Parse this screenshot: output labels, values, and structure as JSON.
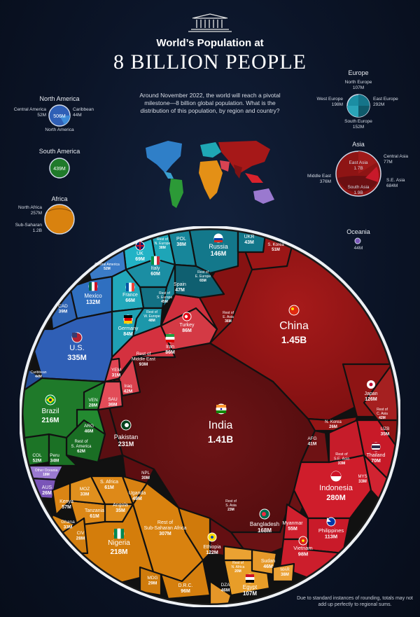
{
  "header": {
    "title_line1": "World’s Population at",
    "title_line2": "8 BILLION PEOPLE",
    "intro": "Around November 2022, the world will reach a pivotal milestone—8 billion global population. What is the distribution of this population, by region and country?"
  },
  "footnote": "Due to standard instances of rounding, totals may not add up perfectly to regional sums.",
  "colors": {
    "north_america": "#2f5fb6",
    "south_america": "#1f7a2a",
    "africa": "#d9820f",
    "europe": "#1b8ea3",
    "asia_east": "#8e1414",
    "asia_south": "#6b0f12",
    "asia_middle_east": "#d4313f",
    "asia_se": "#c8192a",
    "oceania": "#7a55b8"
  },
  "legend": {
    "north_america": {
      "name": "North America",
      "total": "506M",
      "parts": [
        {
          "label": "Central America",
          "value": "52M"
        },
        {
          "label": "Caribbean",
          "value": "44M"
        },
        {
          "label": "North America",
          "value": ""
        }
      ]
    },
    "south_america": {
      "name": "South America",
      "total": "439M"
    },
    "africa": {
      "name": "Africa",
      "parts": [
        {
          "label": "North Africa",
          "value": "257M"
        },
        {
          "label": "Sub-Saharan",
          "value": "1.2B"
        }
      ]
    },
    "europe": {
      "name": "Europe",
      "parts": [
        {
          "label": "North Europe",
          "value": "107M"
        },
        {
          "label": "West Europe",
          "value": "198M"
        },
        {
          "label": "East Europe",
          "value": "292M"
        },
        {
          "label": "South Europe",
          "value": "152M"
        }
      ]
    },
    "asia": {
      "name": "Asia",
      "parts": [
        {
          "label": "Central Asia",
          "value": "77M"
        },
        {
          "label": "East Asia",
          "value": "1.7B"
        },
        {
          "label": "Middle East",
          "value": "376M"
        },
        {
          "label": "South Asia",
          "value": "1.9B"
        },
        {
          "label": "S.E. Asia",
          "value": "684M"
        }
      ]
    },
    "oceania": {
      "name": "Oceania",
      "total": "44M"
    }
  },
  "chart_data": {
    "type": "voronoi-treemap",
    "title": "World’s Population at 8 BILLION PEOPLE",
    "unit": "people",
    "cells": [
      {
        "name": "China",
        "value": "1.45B",
        "region": "asia_east"
      },
      {
        "name": "India",
        "value": "1.41B",
        "region": "asia_south"
      },
      {
        "name": "U.S.",
        "value": "335M",
        "region": "north_america"
      },
      {
        "name": "Indonesia",
        "value": "280M",
        "region": "asia_se"
      },
      {
        "name": "Pakistan",
        "value": "231M",
        "region": "asia_south"
      },
      {
        "name": "Nigeria",
        "value": "218M",
        "region": "africa"
      },
      {
        "name": "Brazil",
        "value": "216M",
        "region": "south_america"
      },
      {
        "name": "Bangladesh",
        "value": "168M",
        "region": "asia_south"
      },
      {
        "name": "Russia",
        "value": "146M",
        "region": "europe"
      },
      {
        "name": "Mexico",
        "value": "132M",
        "region": "north_america"
      },
      {
        "name": "Japan",
        "value": "126M",
        "region": "asia_east"
      },
      {
        "name": "Ethiopia",
        "value": "122M",
        "region": "africa"
      },
      {
        "name": "Philippines",
        "value": "113M",
        "region": "asia_se"
      },
      {
        "name": "Egypt",
        "value": "107M",
        "region": "africa"
      },
      {
        "name": "Vietnam",
        "value": "98M",
        "region": "asia_se"
      },
      {
        "name": "D.R.C.",
        "value": "96M",
        "region": "africa"
      },
      {
        "name": "Iran",
        "value": "86M",
        "region": "asia_middle_east"
      },
      {
        "name": "Turkey",
        "value": "86M",
        "region": "asia_middle_east"
      },
      {
        "name": "Germany",
        "value": "84M",
        "region": "europe"
      },
      {
        "name": "Thailand",
        "value": "70M",
        "region": "asia_se"
      },
      {
        "name": "UK",
        "value": "69M",
        "region": "europe"
      },
      {
        "name": "France",
        "value": "66M",
        "region": "europe"
      },
      {
        "name": "Italy",
        "value": "60M",
        "region": "europe"
      },
      {
        "name": "S. Africa",
        "value": "61M",
        "region": "africa"
      },
      {
        "name": "Tanzania",
        "value": "61M",
        "region": "africa"
      },
      {
        "name": "Myanmar",
        "value": "55M",
        "region": "asia_se"
      },
      {
        "name": "Kenya",
        "value": "57M",
        "region": "africa"
      },
      {
        "name": "Spain",
        "value": "47M",
        "region": "europe"
      },
      {
        "name": "Uganda",
        "value": "49M",
        "region": "africa"
      },
      {
        "name": "S. Korea",
        "value": "51M",
        "region": "asia_east"
      },
      {
        "name": "Sudan",
        "value": "46M",
        "region": "africa"
      },
      {
        "name": "UKR",
        "value": "43M",
        "region": "europe"
      },
      {
        "name": "AFG",
        "value": "41M",
        "region": "asia_south"
      },
      {
        "name": "Iraq",
        "value": "42M",
        "region": "asia_middle_east"
      },
      {
        "name": "ARG",
        "value": "46M",
        "region": "south_america"
      },
      {
        "name": "CAD",
        "value": "39M",
        "region": "north_america"
      },
      {
        "name": "POL",
        "value": "38M",
        "region": "europe"
      },
      {
        "name": "Angola",
        "value": "35M",
        "region": "africa"
      },
      {
        "name": "MOZ",
        "value": "33M",
        "region": "africa"
      },
      {
        "name": "Ghana",
        "value": "33M",
        "region": "africa"
      },
      {
        "name": "YEM",
        "value": "31M",
        "region": "asia_middle_east"
      },
      {
        "name": "SAU",
        "value": "36M",
        "region": "asia_middle_east"
      },
      {
        "name": "UZB",
        "value": "35M",
        "region": "asia_central"
      },
      {
        "name": "MYS",
        "value": "33M",
        "region": "asia_se"
      },
      {
        "name": "Peru",
        "value": "34M",
        "region": "south_america"
      },
      {
        "name": "COL",
        "value": "52M",
        "region": "south_america"
      },
      {
        "name": "VEN",
        "value": "28M",
        "region": "south_america"
      },
      {
        "name": "CIV",
        "value": "28M",
        "region": "africa"
      },
      {
        "name": "MDG",
        "value": "29M",
        "region": "africa"
      },
      {
        "name": "NPL",
        "value": "30M",
        "region": "asia_south"
      },
      {
        "name": "AUS",
        "value": "26M",
        "region": "oceania"
      },
      {
        "name": "N. Korea",
        "value": "26M",
        "region": "asia_east"
      },
      {
        "name": "DZA",
        "value": "46M",
        "region": "africa"
      },
      {
        "name": "MAR",
        "value": "38M",
        "region": "africa"
      },
      {
        "name": "Rest of Middle East",
        "value": "93M",
        "region": "asia_middle_east"
      },
      {
        "name": "Rest of Sub-Saharan Africa",
        "value": "307M",
        "region": "africa"
      },
      {
        "name": "Rest of S. America",
        "value": "62M",
        "region": "south_america"
      },
      {
        "name": "Rest of S.E. Asia",
        "value": "33M",
        "region": "asia_se"
      },
      {
        "name": "Rest of C. Asia",
        "value": "42M",
        "region": "asia_central"
      },
      {
        "name": "Rest of S. Asia",
        "value": "23M",
        "region": "asia_south"
      },
      {
        "name": "Rest of E. Asia",
        "value": "36M",
        "region": "asia_east"
      },
      {
        "name": "Rest of E. Europe",
        "value": "65M",
        "region": "europe"
      },
      {
        "name": "Rest of W. Europe",
        "value": "48M",
        "region": "europe"
      },
      {
        "name": "Rest of S. Europe",
        "value": "45M",
        "region": "europe"
      },
      {
        "name": "Rest of N. Europe",
        "value": "38M",
        "region": "europe"
      },
      {
        "name": "Rest of N. Africa",
        "value": "20M",
        "region": "africa"
      },
      {
        "name": "Central America",
        "value": "52M",
        "region": "north_america"
      },
      {
        "name": "Caribbean",
        "value": "44M",
        "region": "north_america"
      },
      {
        "name": "Other Oceania",
        "value": "18M",
        "region": "oceania"
      }
    ]
  }
}
